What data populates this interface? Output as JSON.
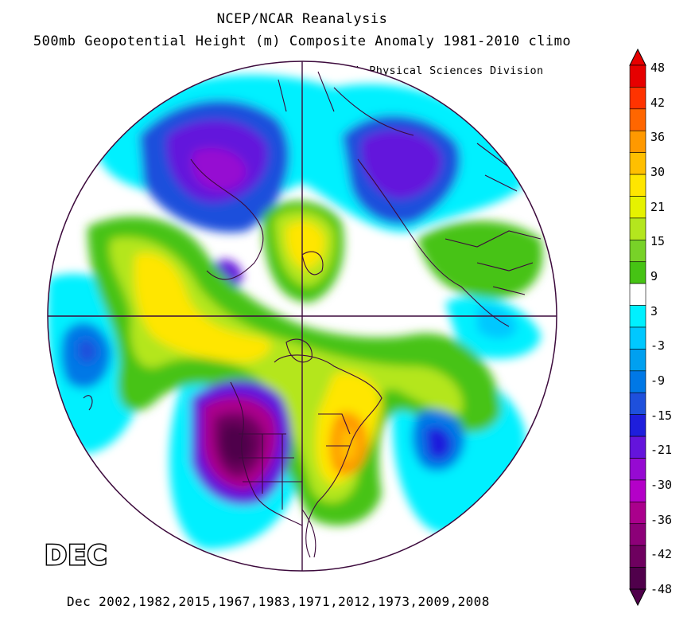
{
  "header": {
    "title_line1": "NCEP/NCAR Reanalysis",
    "title_line2": "500mb Geopotential Height (m) Composite Anomaly 1981-2010 climo",
    "credit": "NOAA/ESRL Physical Sciences Division"
  },
  "month_label": "DEC",
  "footer": "Dec 2002,1982,2015,1967,1983,1971,2012,1973,2009,2008",
  "colorbar": {
    "labels": [
      "48",
      "42",
      "36",
      "30",
      "21",
      "15",
      "9",
      "3",
      "-3",
      "-9",
      "-15",
      "-21",
      "-30",
      "-36",
      "-42",
      "-48"
    ],
    "colors": [
      "#e60000",
      "#ff3300",
      "#ff6600",
      "#ff9900",
      "#ffbf00",
      "#ffe600",
      "#e6f200",
      "#b4e61e",
      "#78d228",
      "#46c314",
      "#ffffff",
      "#00f0ff",
      "#00c8ff",
      "#00a0f0",
      "#0078e6",
      "#1e50dc",
      "#1e1edc",
      "#6414dc",
      "#960ad2",
      "#b400c8",
      "#aa008c",
      "#8c0078",
      "#6e005f",
      "#50004b"
    ]
  },
  "map": {
    "projection": "polar stereographic, north pole centered",
    "colors": {
      "outline": "#3c0a3c",
      "strong_negative": "#4b0050",
      "negative_purple": "#6414dc",
      "negative_blue": "#1e50dc",
      "light_blue": "#00c8ff",
      "cyan": "#00f0ff",
      "green": "#46c314",
      "yellow_green": "#b4e61e",
      "yellow": "#ffe600",
      "orange": "#ff9900"
    }
  }
}
